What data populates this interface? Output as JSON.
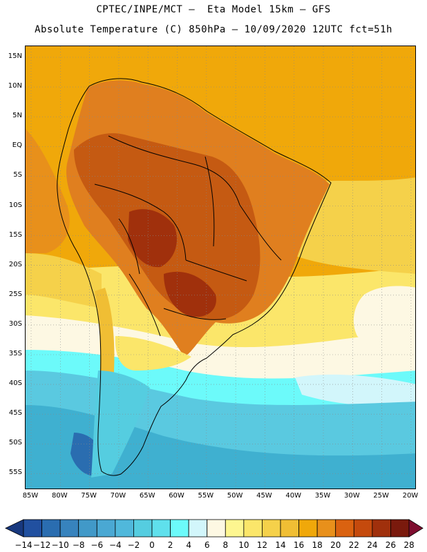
{
  "titles": {
    "line1": "CPTEC/INPE/MCT –  Eta Model 15km – GFS",
    "line2": "Absolute Temperature (C) 850hPa – 10/09/2020 12UTC fct=51h"
  },
  "map": {
    "lat_labels": [
      "15N",
      "10N",
      "5N",
      "EQ",
      "5S",
      "10S",
      "15S",
      "20S",
      "25S",
      "30S",
      "35S",
      "40S",
      "45S",
      "50S",
      "55S"
    ],
    "lon_labels": [
      "85W",
      "80W",
      "75W",
      "70W",
      "65W",
      "60W",
      "55W",
      "50W",
      "45W",
      "40W",
      "35W",
      "30W",
      "25W",
      "20W"
    ],
    "gridlines": "dotted",
    "ocean_north_color": "#f0a80a",
    "warm_core_color": "#c55a12",
    "land_warm_color": "#e07f1f",
    "south_ocean_color": "#5ac9e0",
    "cold_water_color": "#3fb0d0",
    "coastline_color": "#000000"
  },
  "legend": {
    "labels": [
      "-14",
      "-12",
      "-10",
      "-8",
      "-6",
      "-4",
      "-2",
      "0",
      "2",
      "4",
      "6",
      "8",
      "10",
      "12",
      "14",
      "16",
      "18",
      "20",
      "22",
      "24",
      "26",
      "28"
    ],
    "colors": [
      "#18387e",
      "#2150a0",
      "#2a6db0",
      "#3783bd",
      "#4199c8",
      "#4aa8d3",
      "#50b8db",
      "#55cde0",
      "#5fe0ec",
      "#6cfafa",
      "#d2f6fb",
      "#fdf8e3",
      "#fdf690",
      "#fbe66a",
      "#f5d14a",
      "#f0be34",
      "#f0a80a",
      "#e8901b",
      "#da6210",
      "#c54a0d",
      "#a0300c",
      "#7a1a0d",
      "#7e0d2f"
    ]
  }
}
